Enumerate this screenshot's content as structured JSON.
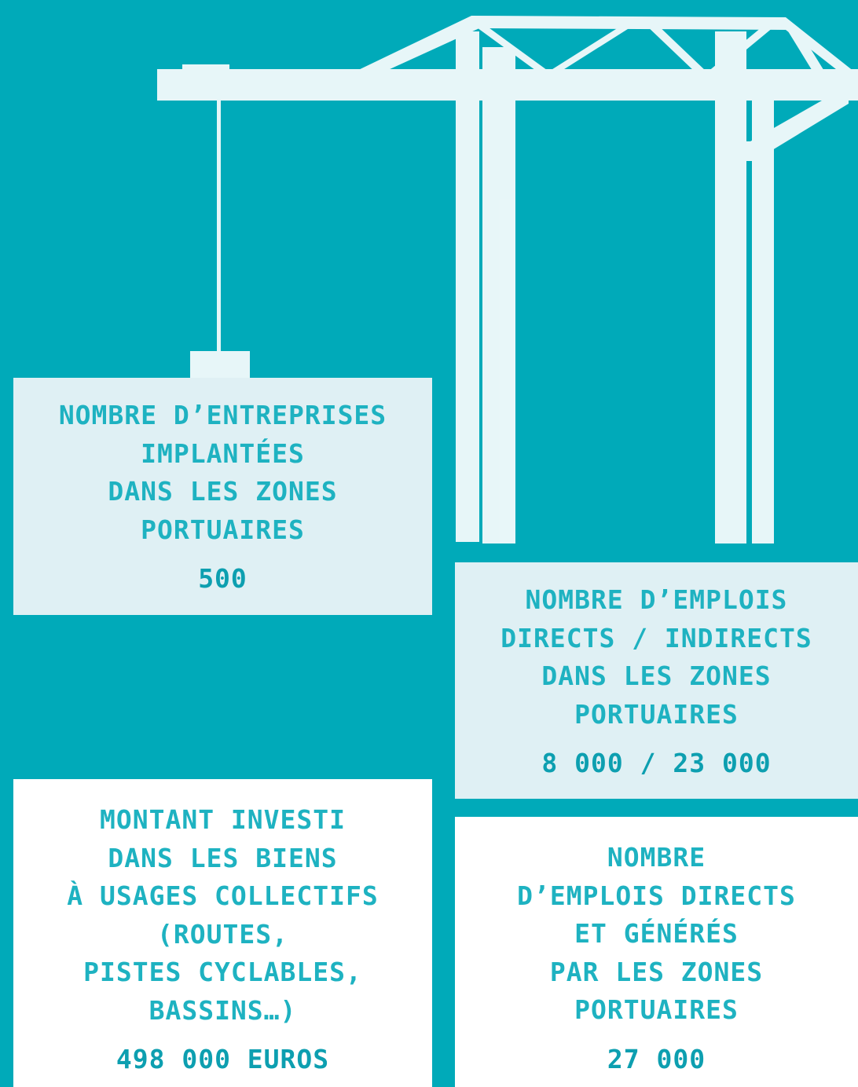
{
  "cards": [
    {
      "label": [
        "NOMBRE D’ENTREPRISES",
        "IMPLANTÉES",
        "DANS LES ZONES",
        "PORTUAIRES"
      ],
      "value": "500"
    },
    {
      "label": [
        "NOMBRE D’EMPLOIS",
        "DIRECTS / INDIRECTS",
        "DANS LES ZONES",
        "PORTUAIRES"
      ],
      "value": "8 000 / 23 000"
    },
    {
      "label": [
        "MONTANT INVESTI",
        "DANS LES BIENS",
        "À USAGES COLLECTIFS",
        "(ROUTES,",
        "PISTES CYCLABLES,",
        "BASSINS…)"
      ],
      "value": "498 000 EUROS"
    },
    {
      "label": [
        "NOMBRE",
        "D’EMPLOIS DIRECTS",
        "ET GÉNÉRÉS",
        "PAR LES ZONES",
        "PORTUAIRES"
      ],
      "value": "27 000"
    }
  ]
}
